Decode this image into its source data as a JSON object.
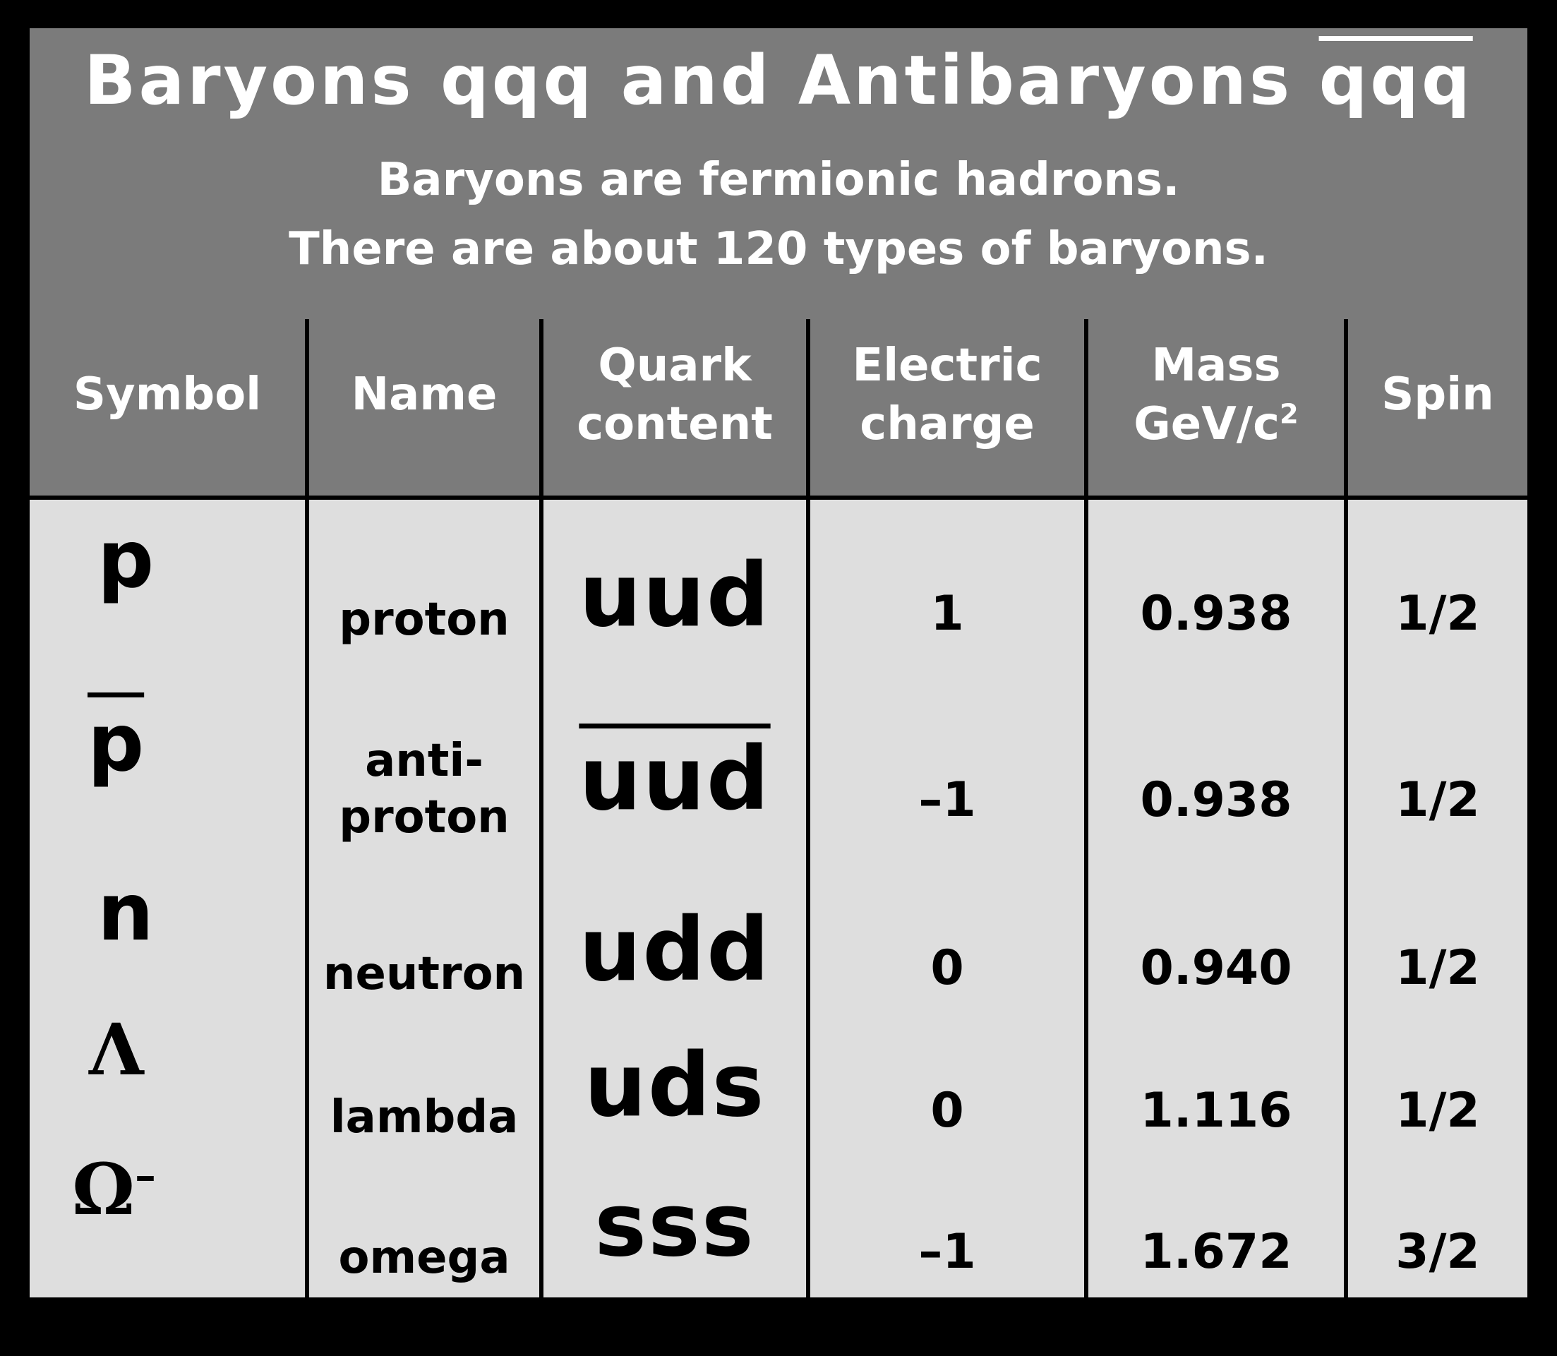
{
  "title": {
    "main_plain": "Baryons qqq and Antibaryons ",
    "main_bar": "qqq",
    "line1": "Baryons are fermionic hadrons.",
    "line2": "There are about 120 types of baryons."
  },
  "headers": {
    "symbol": "Symbol",
    "name": "Name",
    "quark_1": "Quark",
    "quark_2": "content",
    "charge_1": "Electric",
    "charge_2": "charge",
    "mass_1": "Mass",
    "mass_2": "GeV/c",
    "mass_sup": "2",
    "spin": "Spin"
  },
  "rows": [
    {
      "symbol": "p",
      "name_1": "proton",
      "name_2": "",
      "quark": "uud",
      "charge": "1",
      "mass": "0.938",
      "spin": "1/2"
    },
    {
      "symbol": "p",
      "name_1": "anti-",
      "name_2": "proton",
      "quark": "uud",
      "charge": "–1",
      "mass": "0.938",
      "spin": "1/2"
    },
    {
      "symbol": "n",
      "name_1": "neutron",
      "name_2": "",
      "quark": "udd",
      "charge": "0",
      "mass": "0.940",
      "spin": "1/2"
    },
    {
      "symbol": "Λ",
      "name_1": "lambda",
      "name_2": "",
      "quark": "uds",
      "charge": "0",
      "mass": "1.116",
      "spin": "1/2"
    },
    {
      "symbol": "Ω",
      "symbol_sup": "–",
      "name_1": "omega",
      "name_2": "",
      "quark": "sss",
      "charge": "–1",
      "mass": "1.672",
      "spin": "3/2"
    }
  ]
}
